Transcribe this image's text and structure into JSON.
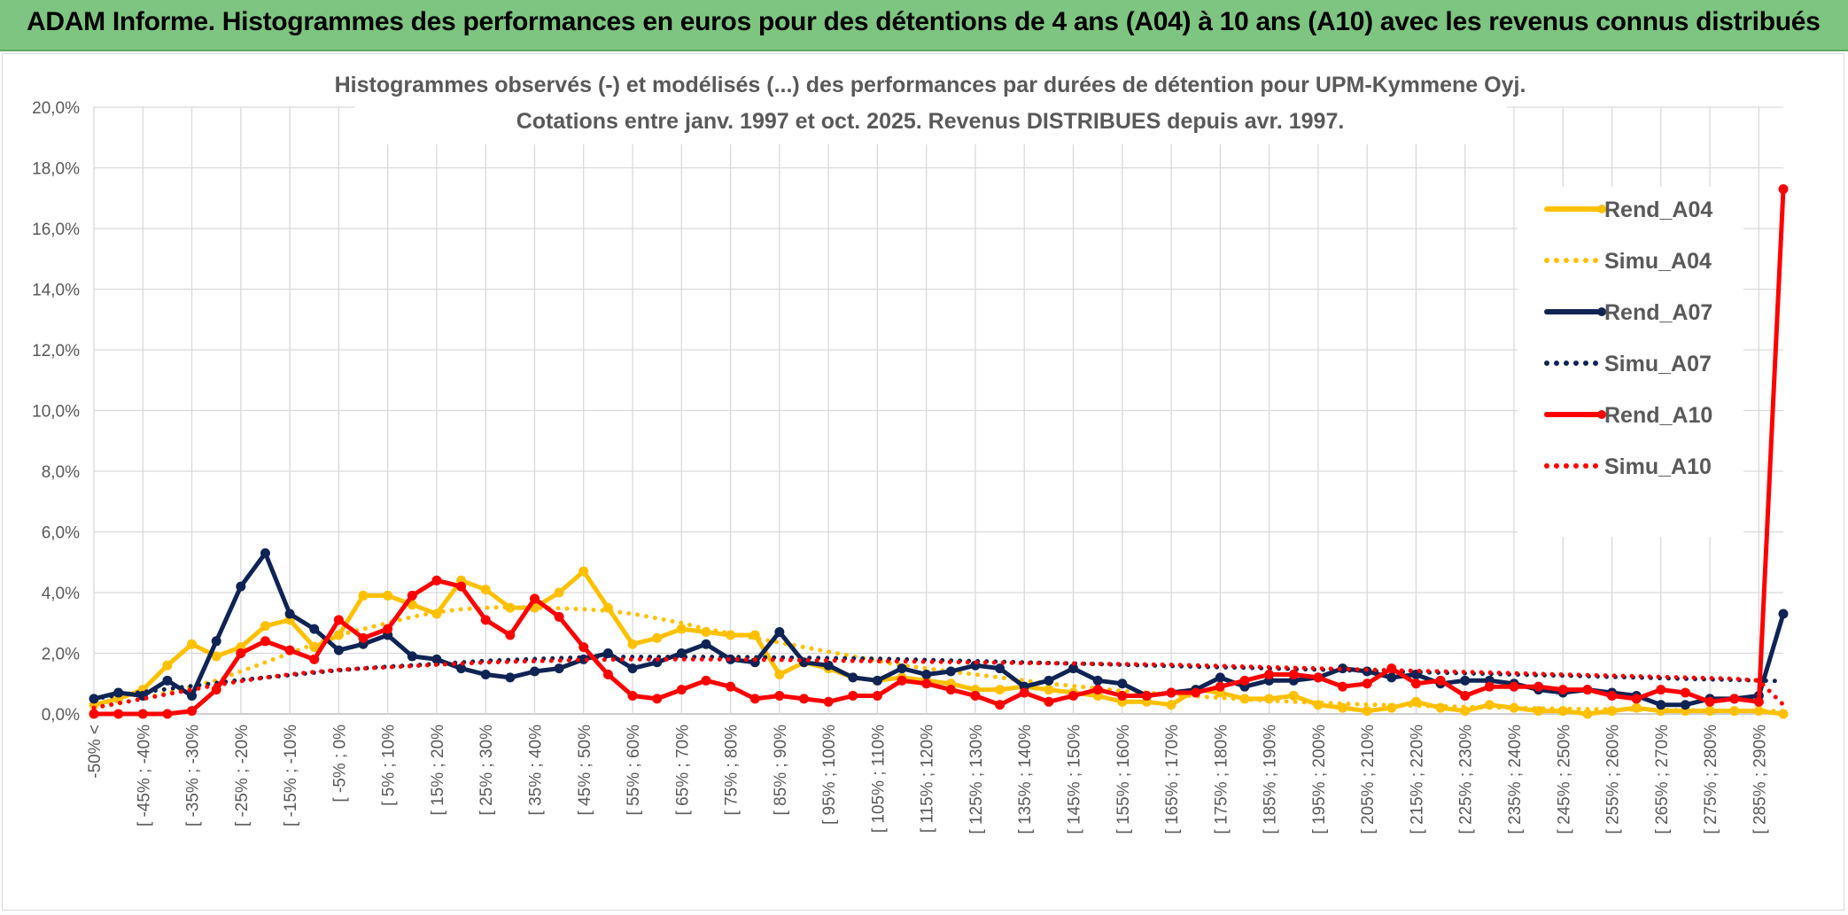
{
  "banner": {
    "title": "ADAM Informe. Histogrammes des performances en euros pour des détentions de 4 ans (A04) à 10 ans (A10) avec les revenus connus distribués",
    "color": "#7dc580"
  },
  "chart_data": {
    "type": "line",
    "title": "Histogrammes observés (-) et modélisés (...) des performances par durées de détention pour UPM-Kymmene Oyj.",
    "subtitle": "Cotations entre janv. 1997 et oct. 2025. Revenus DISTRIBUES depuis avr. 1997.",
    "xlabel": "",
    "ylabel": "",
    "ylim": [
      0,
      20
    ],
    "yticks": [
      "0,0%",
      "2,0%",
      "4,0%",
      "6,0%",
      "8,0%",
      "10,0%",
      "12,0%",
      "14,0%",
      "16,0%",
      "18,0%",
      "20,0%"
    ],
    "grid": true,
    "legend_position": "right",
    "x_tick_labels": [
      "-50% <",
      "[ -45% ; -40%",
      "[ -35% ; -30%",
      "[ -25% ; -20%",
      "[ -15% ; -10%",
      "[ -5% ; 0%",
      "[ 5% ; 10%",
      "[ 15% ; 20%",
      "[ 25% ; 30%",
      "[ 35% ; 40%",
      "[ 45% ; 50%",
      "[ 55% ; 60%",
      "[ 65% ; 70%",
      "[ 75% ; 80%",
      "[ 85% ; 90%",
      "[ 95% ; 100%",
      "[ 105% ; 110%",
      "[ 115% ; 120%",
      "[ 125% ; 130%",
      "[ 135% ; 140%",
      "[ 145% ; 150%",
      "[ 155% ; 160%",
      "[ 165% ; 170%",
      "[ 175% ; 180%",
      "[ 185% ; 190%",
      "[ 195% ; 200%",
      "[ 205% ; 210%",
      "[ 215% ; 220%",
      "[ 225% ; 230%",
      "[ 235% ; 240%",
      "[ 245% ; 250%",
      "[ 255% ; 260%",
      "[ 265% ; 270%",
      "[ 275% ; 280%",
      "[ 285% ; 290%"
    ],
    "n_points": 70,
    "series": [
      {
        "name": "Rend_A04",
        "color": "#ffc000",
        "style": "solid",
        "markers": true,
        "values": [
          0.3,
          0.5,
          0.8,
          1.6,
          2.3,
          1.9,
          2.2,
          2.9,
          3.1,
          2.2,
          2.6,
          3.9,
          3.9,
          3.6,
          3.3,
          4.4,
          4.1,
          3.5,
          3.5,
          4.0,
          4.7,
          3.5,
          2.3,
          2.5,
          2.8,
          2.7,
          2.6,
          2.6,
          1.3,
          1.7,
          1.5,
          1.2,
          1.1,
          1.2,
          1.1,
          1.0,
          0.8,
          0.8,
          0.9,
          0.8,
          0.7,
          0.6,
          0.4,
          0.4,
          0.3,
          0.8,
          0.7,
          0.5,
          0.5,
          0.6,
          0.3,
          0.2,
          0.1,
          0.2,
          0.4,
          0.2,
          0.1,
          0.3,
          0.2,
          0.1,
          0.1,
          0.0,
          0.1,
          0.2,
          0.1,
          0.1,
          0.1,
          0.1,
          0.1,
          0.0
        ]
      },
      {
        "name": "Simu_A04",
        "color": "#ffc000",
        "style": "dotted",
        "markers": false,
        "values": [
          0.2,
          0.35,
          0.5,
          0.7,
          0.9,
          1.1,
          1.4,
          1.7,
          2.0,
          2.3,
          2.6,
          2.8,
          3.0,
          3.2,
          3.35,
          3.45,
          3.5,
          3.52,
          3.5,
          3.48,
          3.45,
          3.4,
          3.3,
          3.15,
          3.0,
          2.8,
          2.65,
          2.5,
          2.35,
          2.2,
          2.05,
          1.9,
          1.75,
          1.6,
          1.5,
          1.4,
          1.3,
          1.2,
          1.1,
          1.0,
          0.92,
          0.84,
          0.76,
          0.7,
          0.64,
          0.58,
          0.53,
          0.48,
          0.44,
          0.4,
          0.37,
          0.34,
          0.31,
          0.29,
          0.27,
          0.25,
          0.23,
          0.21,
          0.2,
          0.18,
          0.17,
          0.16,
          0.15,
          0.14,
          0.13,
          0.12,
          0.11,
          0.1,
          0.1,
          0.09
        ]
      },
      {
        "name": "Rend_A07",
        "color": "#0f2454",
        "style": "solid",
        "markers": true,
        "values": [
          0.5,
          0.7,
          0.6,
          1.1,
          0.6,
          2.4,
          4.2,
          5.3,
          3.3,
          2.8,
          2.1,
          2.3,
          2.6,
          1.9,
          1.8,
          1.5,
          1.3,
          1.2,
          1.4,
          1.5,
          1.8,
          2.0,
          1.5,
          1.7,
          2.0,
          2.3,
          1.8,
          1.7,
          2.7,
          1.7,
          1.6,
          1.2,
          1.1,
          1.5,
          1.3,
          1.4,
          1.6,
          1.5,
          0.9,
          1.1,
          1.5,
          1.1,
          1.0,
          0.6,
          0.7,
          0.8,
          1.2,
          0.9,
          1.1,
          1.1,
          1.2,
          1.5,
          1.4,
          1.2,
          1.3,
          1.0,
          1.1,
          1.1,
          1.0,
          0.8,
          0.7,
          0.8,
          0.7,
          0.6,
          0.3,
          0.3,
          0.5,
          0.5,
          0.6,
          3.3
        ]
      },
      {
        "name": "Simu_A07",
        "color": "#0f2454",
        "style": "dotted",
        "markers": false,
        "values": [
          0.5,
          0.62,
          0.72,
          0.82,
          0.92,
          1.02,
          1.12,
          1.2,
          1.28,
          1.36,
          1.44,
          1.5,
          1.56,
          1.6,
          1.65,
          1.7,
          1.75,
          1.78,
          1.81,
          1.84,
          1.86,
          1.88,
          1.88,
          1.88,
          1.88,
          1.88,
          1.88,
          1.87,
          1.86,
          1.85,
          1.84,
          1.83,
          1.82,
          1.8,
          1.78,
          1.76,
          1.74,
          1.72,
          1.7,
          1.68,
          1.66,
          1.64,
          1.62,
          1.6,
          1.58,
          1.56,
          1.54,
          1.52,
          1.5,
          1.48,
          1.46,
          1.44,
          1.42,
          1.4,
          1.38,
          1.36,
          1.34,
          1.32,
          1.3,
          1.28,
          1.26,
          1.24,
          1.22,
          1.2,
          1.18,
          1.16,
          1.14,
          1.12,
          1.1,
          1.08
        ]
      },
      {
        "name": "Rend_A10",
        "color": "#ff0000",
        "style": "solid",
        "markers": true,
        "values": [
          0.0,
          0.0,
          0.0,
          0.0,
          0.1,
          0.8,
          2.0,
          2.4,
          2.1,
          1.8,
          3.1,
          2.5,
          2.8,
          3.9,
          4.4,
          4.2,
          3.1,
          2.6,
          3.8,
          3.2,
          2.2,
          1.3,
          0.6,
          0.5,
          0.8,
          1.1,
          0.9,
          0.5,
          0.6,
          0.5,
          0.4,
          0.6,
          0.6,
          1.1,
          1.0,
          0.8,
          0.6,
          0.3,
          0.7,
          0.4,
          0.6,
          0.8,
          0.6,
          0.6,
          0.7,
          0.7,
          0.9,
          1.1,
          1.3,
          1.3,
          1.2,
          0.9,
          1.0,
          1.5,
          1.0,
          1.1,
          0.6,
          0.9,
          0.9,
          0.9,
          0.8,
          0.8,
          0.6,
          0.5,
          0.8,
          0.7,
          0.4,
          0.5,
          0.4,
          17.3
        ]
      },
      {
        "name": "Simu_A10",
        "color": "#ff0000",
        "style": "dotted",
        "markers": false,
        "values": [
          0.2,
          0.35,
          0.5,
          0.65,
          0.8,
          0.95,
          1.08,
          1.2,
          1.3,
          1.38,
          1.45,
          1.5,
          1.54,
          1.58,
          1.62,
          1.66,
          1.7,
          1.72,
          1.74,
          1.76,
          1.78,
          1.79,
          1.8,
          1.8,
          1.8,
          1.8,
          1.8,
          1.79,
          1.78,
          1.77,
          1.76,
          1.75,
          1.74,
          1.73,
          1.72,
          1.71,
          1.7,
          1.69,
          1.68,
          1.67,
          1.66,
          1.65,
          1.64,
          1.63,
          1.62,
          1.6,
          1.58,
          1.56,
          1.54,
          1.52,
          1.5,
          1.48,
          1.46,
          1.44,
          1.42,
          1.4,
          1.38,
          1.36,
          1.34,
          1.32,
          1.3,
          1.28,
          1.26,
          1.24,
          1.22,
          1.2,
          1.18,
          1.16,
          1.1,
          0.3
        ]
      }
    ]
  }
}
